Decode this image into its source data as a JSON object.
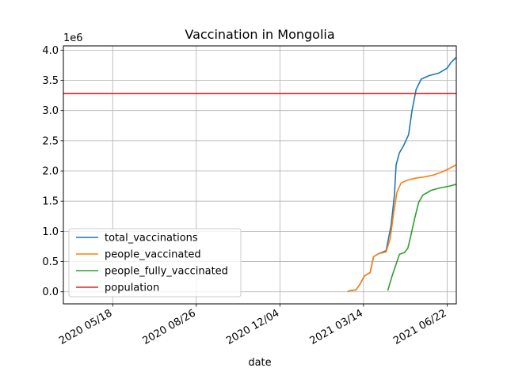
{
  "chart_data": {
    "type": "line",
    "title": "Vaccination in Mongolia",
    "xlabel": "date",
    "ylabel": "",
    "y_scale_label": "1e6",
    "x_ticks": [
      "2020-05-18",
      "2020-08-26",
      "2020-12-04",
      "2021-03-14",
      "2021-06-22"
    ],
    "x_tick_labels": [
      "2020 05/18",
      "2020 08/26",
      "2020 12/04",
      "2021 03/14",
      "2021 06/22"
    ],
    "xlim": [
      "2020-03-20",
      "2021-07-03"
    ],
    "y_ticks": [
      0.0,
      0.5,
      1.0,
      1.5,
      2.0,
      2.5,
      3.0,
      3.5,
      4.0
    ],
    "y_tick_labels": [
      "0.0",
      "0.5",
      "1.0",
      "1.5",
      "2.0",
      "2.5",
      "3.0",
      "3.5",
      "4.0"
    ],
    "ylim": [
      -0.2,
      4.07
    ],
    "y_unit_multiplier": 1000000,
    "grid": true,
    "legend_position": "lower-left",
    "series": [
      {
        "name": "total_vaccinations",
        "color": "#1f77b4",
        "points": [
          [
            "2021-02-23",
            0.0
          ],
          [
            "2021-02-26",
            0.02
          ],
          [
            "2021-03-05",
            0.03
          ],
          [
            "2021-03-10",
            0.13
          ],
          [
            "2021-03-15",
            0.26
          ],
          [
            "2021-03-22",
            0.32
          ],
          [
            "2021-03-26",
            0.58
          ],
          [
            "2021-04-01",
            0.63
          ],
          [
            "2021-04-10",
            0.68
          ],
          [
            "2021-04-16",
            1.1
          ],
          [
            "2021-04-20",
            1.6
          ],
          [
            "2021-04-22",
            2.1
          ],
          [
            "2021-04-26",
            2.3
          ],
          [
            "2021-05-01",
            2.42
          ],
          [
            "2021-05-07",
            2.6
          ],
          [
            "2021-05-11",
            3.0
          ],
          [
            "2021-05-16",
            3.35
          ],
          [
            "2021-05-22",
            3.52
          ],
          [
            "2021-06-01",
            3.58
          ],
          [
            "2021-06-12",
            3.62
          ],
          [
            "2021-06-22",
            3.7
          ],
          [
            "2021-06-27",
            3.8
          ],
          [
            "2021-07-03",
            3.88
          ]
        ]
      },
      {
        "name": "people_vaccinated",
        "color": "#ff7f0e",
        "points": [
          [
            "2021-02-23",
            0.0
          ],
          [
            "2021-02-26",
            0.02
          ],
          [
            "2021-03-05",
            0.03
          ],
          [
            "2021-03-10",
            0.13
          ],
          [
            "2021-03-15",
            0.26
          ],
          [
            "2021-03-22",
            0.32
          ],
          [
            "2021-03-26",
            0.58
          ],
          [
            "2021-04-01",
            0.63
          ],
          [
            "2021-04-10",
            0.66
          ],
          [
            "2021-04-15",
            0.88
          ],
          [
            "2021-04-19",
            1.3
          ],
          [
            "2021-04-23",
            1.65
          ],
          [
            "2021-04-28",
            1.8
          ],
          [
            "2021-05-06",
            1.85
          ],
          [
            "2021-05-15",
            1.88
          ],
          [
            "2021-05-25",
            1.9
          ],
          [
            "2021-06-05",
            1.93
          ],
          [
            "2021-06-15",
            1.98
          ],
          [
            "2021-06-22",
            2.02
          ],
          [
            "2021-06-27",
            2.06
          ],
          [
            "2021-07-03",
            2.1
          ]
        ]
      },
      {
        "name": "people_fully_vaccinated",
        "color": "#2ca02c",
        "points": [
          [
            "2021-04-12",
            0.02
          ],
          [
            "2021-04-17",
            0.25
          ],
          [
            "2021-04-23",
            0.5
          ],
          [
            "2021-04-26",
            0.62
          ],
          [
            "2021-05-02",
            0.65
          ],
          [
            "2021-05-06",
            0.72
          ],
          [
            "2021-05-10",
            0.95
          ],
          [
            "2021-05-14",
            1.2
          ],
          [
            "2021-05-19",
            1.48
          ],
          [
            "2021-05-24",
            1.6
          ],
          [
            "2021-06-03",
            1.68
          ],
          [
            "2021-06-14",
            1.72
          ],
          [
            "2021-06-25",
            1.75
          ],
          [
            "2021-07-03",
            1.78
          ]
        ]
      },
      {
        "name": "population",
        "color": "#d62728",
        "points": [
          [
            "2020-03-20",
            3.28
          ],
          [
            "2021-07-03",
            3.28
          ]
        ]
      }
    ]
  }
}
